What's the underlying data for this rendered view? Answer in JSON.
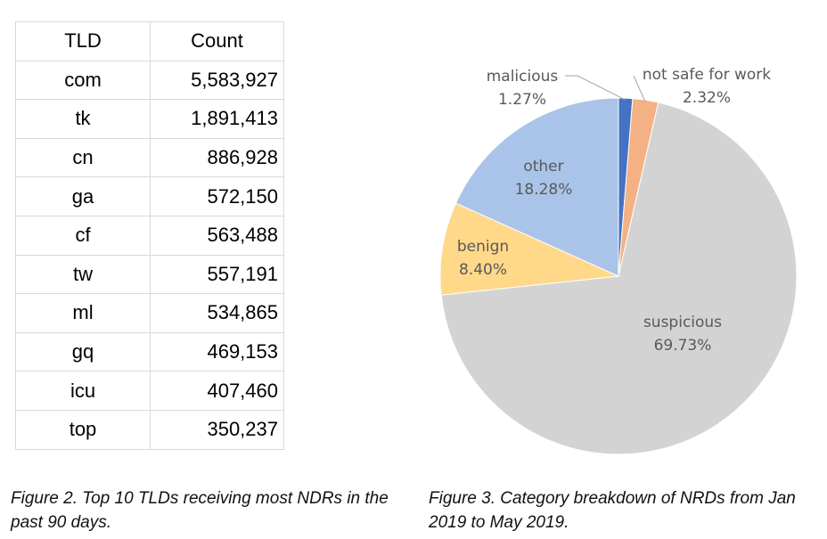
{
  "table": {
    "headers": [
      "TLD",
      "Count"
    ],
    "rows": [
      {
        "tld": "com",
        "count": "5,583,927"
      },
      {
        "tld": "tk",
        "count": "1,891,413"
      },
      {
        "tld": "cn",
        "count": "886,928"
      },
      {
        "tld": "ga",
        "count": "572,150"
      },
      {
        "tld": "cf",
        "count": "563,488"
      },
      {
        "tld": "tw",
        "count": "557,191"
      },
      {
        "tld": "ml",
        "count": "534,865"
      },
      {
        "tld": "gq",
        "count": "469,153"
      },
      {
        "tld": "icu",
        "count": "407,460"
      },
      {
        "tld": "top",
        "count": "350,237"
      }
    ]
  },
  "captions": {
    "figure2": "Figure 2. Top 10 TLDs receiving most NDRs in the past 90 days.",
    "figure3": "Figure 3. Category breakdown of NRDs from Jan 2019 to May 2019."
  },
  "chart_data": [
    {
      "type": "table",
      "columns": [
        "TLD",
        "Count"
      ],
      "rows": [
        [
          "com",
          5583927
        ],
        [
          "tk",
          1891413
        ],
        [
          "cn",
          886928
        ],
        [
          "ga",
          572150
        ],
        [
          "cf",
          563488
        ],
        [
          "tw",
          557191
        ],
        [
          "ml",
          534865
        ],
        [
          "gq",
          469153
        ],
        [
          "icu",
          407460
        ],
        [
          "top",
          350237
        ]
      ]
    },
    {
      "type": "pie",
      "slices": [
        {
          "name": "malicious",
          "value": 1.27,
          "label": "1.27%",
          "color": "#4472c4"
        },
        {
          "name": "not safe for work",
          "value": 2.32,
          "label": "2.32%",
          "color": "#f4b183"
        },
        {
          "name": "suspicious",
          "value": 69.73,
          "label": "69.73%",
          "color": "#d3d3d3"
        },
        {
          "name": "benign",
          "value": 8.4,
          "label": "8.40%",
          "color": "#ffd88a"
        },
        {
          "name": "other",
          "value": 18.28,
          "label": "18.28%",
          "color": "#a9c4e8"
        }
      ],
      "start_angle_deg": 0,
      "direction": "clockwise"
    }
  ],
  "colors": {
    "malicious": "#4472c4",
    "not_safe_for_work": "#f4b183",
    "suspicious": "#d3d3d3",
    "benign": "#ffd88a",
    "other": "#a9c4e8",
    "table_border": "#d9d9d9",
    "pie_label": "#595959"
  }
}
